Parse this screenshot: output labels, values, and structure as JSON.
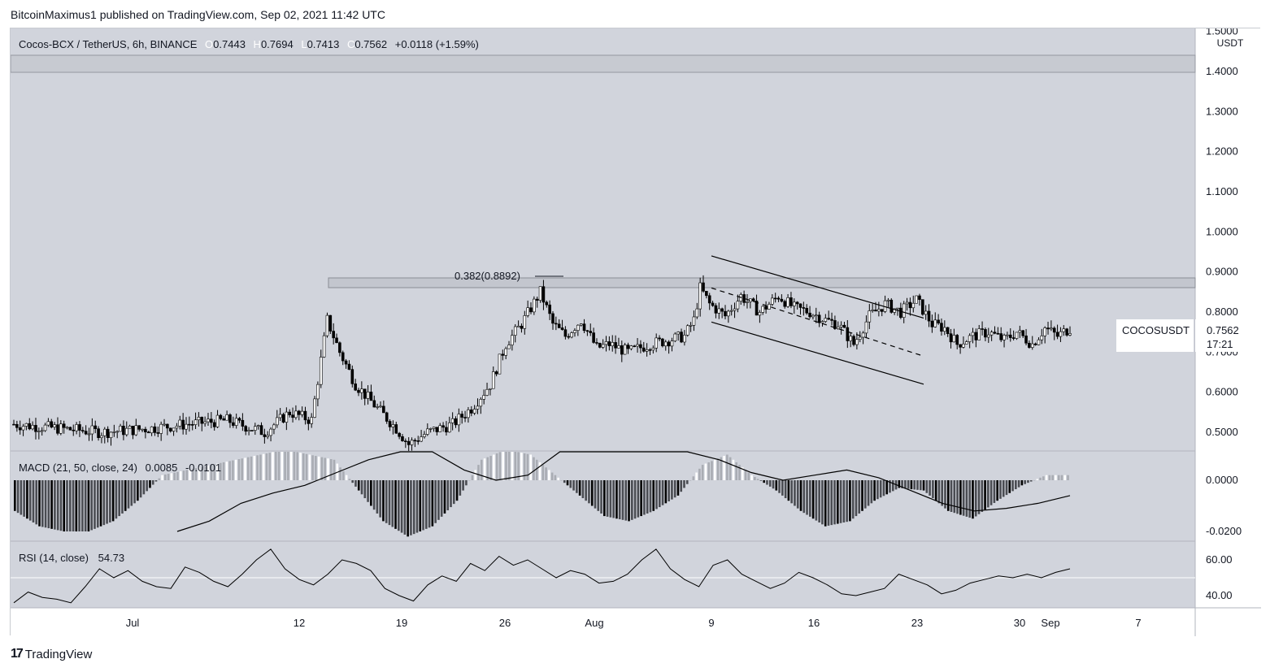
{
  "header": {
    "attribution": "BitcoinMaximus1 published on TradingView.com, Sep 02, 2021 11:42 UTC"
  },
  "footer": {
    "brand": "TradingView",
    "brand_mark": "17"
  },
  "symbol_bar": {
    "pair": "Cocos-BCX / TetherUS, 6h, BINANCE",
    "o_label": "O",
    "o": "0.7443",
    "h_label": "H",
    "h": "0.7694",
    "l_label": "L",
    "l": "0.7413",
    "c_label": "C",
    "c": "0.7562",
    "change": "+0.0118 (+1.59%)"
  },
  "price_tag": {
    "symbol": "COCOSUSDT",
    "price": "0.7562",
    "countdown": "17:21"
  },
  "fib_label": "0.382(0.8892)",
  "macd": {
    "label": "MACD (21, 50, close, 24)",
    "v1": "0.0085",
    "v2": "-0.0101"
  },
  "rsi": {
    "label": "RSI (14, close)",
    "value": "54.73"
  },
  "colors": {
    "background": "#d1d4dc",
    "candle_up": "#ffffff",
    "candle_down": "#000000",
    "line": "#000000",
    "text": "#131722"
  },
  "chart_data": {
    "type": "candlestick",
    "price_axis": {
      "unit": "USDT",
      "ticks": [
        "1.5000",
        "1.4000",
        "1.3000",
        "1.2000",
        "1.1000",
        "1.0000",
        "0.9000",
        "0.8000",
        "0.7000",
        "0.6000",
        "0.5000"
      ],
      "range": [
        0.45,
        1.51
      ]
    },
    "time_axis": {
      "ticks": [
        "Jul",
        "12",
        "19",
        "26",
        "Aug",
        "9",
        "16",
        "23",
        "30",
        "Sep",
        "7"
      ]
    },
    "price_path": [
      [
        0,
        0.52
      ],
      [
        14,
        0.51
      ],
      [
        28,
        0.5
      ],
      [
        44,
        0.51
      ],
      [
        55,
        0.52
      ],
      [
        68,
        0.53
      ],
      [
        80,
        0.5
      ],
      [
        88,
        0.55
      ],
      [
        95,
        0.53
      ],
      [
        100,
        0.78
      ],
      [
        104,
        0.7
      ],
      [
        109,
        0.62
      ],
      [
        116,
        0.56
      ],
      [
        122,
        0.51
      ],
      [
        126,
        0.47
      ],
      [
        132,
        0.5
      ],
      [
        140,
        0.52
      ],
      [
        146,
        0.56
      ],
      [
        152,
        0.62
      ],
      [
        157,
        0.72
      ],
      [
        162,
        0.77
      ],
      [
        168,
        0.85
      ],
      [
        172,
        0.77
      ],
      [
        176,
        0.74
      ],
      [
        181,
        0.78
      ],
      [
        186,
        0.71
      ],
      [
        190,
        0.72
      ],
      [
        196,
        0.7
      ],
      [
        203,
        0.72
      ],
      [
        209,
        0.73
      ],
      [
        214,
        0.74
      ],
      [
        217,
        0.78
      ],
      [
        219,
        0.86
      ],
      [
        222,
        0.82
      ],
      [
        227,
        0.79
      ],
      [
        232,
        0.84
      ],
      [
        238,
        0.8
      ],
      [
        244,
        0.84
      ],
      [
        249,
        0.81
      ],
      [
        254,
        0.8
      ],
      [
        259,
        0.78
      ],
      [
        263,
        0.77
      ],
      [
        268,
        0.72
      ],
      [
        273,
        0.79
      ],
      [
        278,
        0.82
      ],
      [
        283,
        0.8
      ],
      [
        288,
        0.83
      ],
      [
        293,
        0.77
      ],
      [
        297,
        0.76
      ],
      [
        301,
        0.72
      ],
      [
        306,
        0.74
      ],
      [
        311,
        0.75
      ],
      [
        316,
        0.73
      ],
      [
        320,
        0.75
      ],
      [
        325,
        0.72
      ],
      [
        329,
        0.76
      ],
      [
        333,
        0.74
      ],
      [
        337,
        0.76
      ]
    ],
    "volume_bars": [],
    "fib_level": {
      "label": "0.382(0.8892)",
      "value": 0.8892
    },
    "channel": {
      "upper": [
        [
          9.0,
          0.94
        ],
        [
          23.5,
          0.785
        ]
      ],
      "lower": [
        [
          9.0,
          0.775
        ],
        [
          23.5,
          0.62
        ]
      ],
      "mid": [
        [
          9.0,
          0.86
        ],
        [
          23.5,
          0.69
        ]
      ]
    },
    "macd": {
      "label": "MACD (21, 50, close, 24)",
      "ticks": [
        "0.0000",
        "-0.0200"
      ],
      "histogram": [
        -0.012,
        -0.018,
        -0.02,
        -0.02,
        -0.016,
        -0.008,
        0.002,
        0.004,
        0.006,
        0.008,
        0.01,
        0.012,
        0.01,
        0.008,
        -0.004,
        -0.016,
        -0.022,
        -0.018,
        -0.008,
        0.008,
        0.012,
        0.01,
        0.002,
        -0.006,
        -0.014,
        -0.016,
        -0.012,
        -0.006,
        0.006,
        0.01,
        0.002,
        -0.004,
        -0.012,
        -0.018,
        -0.016,
        -0.008,
        -0.003,
        -0.004,
        -0.012,
        -0.015,
        -0.008,
        -0.002,
        0.002
      ],
      "signal": [
        -0.02,
        -0.016,
        -0.009,
        -0.005,
        -0.002,
        0.003,
        0.008,
        0.012,
        0.015,
        0.004,
        0.0,
        0.002,
        0.012,
        0.02,
        0.019,
        0.017,
        0.012,
        0.008,
        0.003,
        0.0,
        0.002,
        0.004,
        0.001,
        -0.004,
        -0.009,
        -0.012,
        -0.011,
        -0.009,
        -0.006
      ]
    },
    "rsi": {
      "label": "RSI (14, close)",
      "ticks": [
        "60.00",
        "40.00"
      ],
      "values": [
        36,
        42,
        39,
        38,
        36,
        45,
        55,
        50,
        54,
        48,
        45,
        44,
        56,
        53,
        48,
        45,
        52,
        60,
        66,
        55,
        49,
        46,
        52,
        60,
        58,
        54,
        44,
        40,
        37,
        46,
        51,
        48,
        58,
        54,
        62,
        57,
        60,
        55,
        50,
        54,
        52,
        47,
        48,
        52,
        60,
        66,
        55,
        49,
        45,
        57,
        60,
        52,
        48,
        44,
        47,
        53,
        50,
        46,
        41,
        40,
        42,
        44,
        52,
        49,
        46,
        41,
        43,
        47,
        49,
        51,
        50,
        52,
        50,
        53,
        55
      ]
    }
  }
}
